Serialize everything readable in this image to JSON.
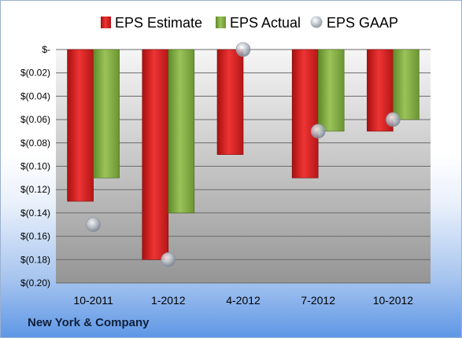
{
  "footer": {
    "company": "New York & Company"
  },
  "colors": {
    "estimate": "#d42020",
    "actual": "#7ea83e",
    "gaap": "#a6adb8",
    "plot_bg_top": "#f4f4f4",
    "plot_bg_bottom": "#9a9a9a"
  },
  "chart_data": {
    "type": "bar",
    "categories": [
      "10-2011",
      "1-2012",
      "4-2012",
      "7-2012",
      "10-2012"
    ],
    "series": [
      {
        "name": "EPS Estimate",
        "kind": "bar",
        "values": [
          -0.13,
          -0.18,
          -0.09,
          -0.11,
          -0.07
        ]
      },
      {
        "name": "EPS Actual",
        "kind": "bar",
        "values": [
          -0.11,
          -0.14,
          null,
          -0.07,
          -0.06
        ]
      },
      {
        "name": "EPS GAAP",
        "kind": "scatter",
        "values": [
          -0.15,
          -0.18,
          0.0,
          -0.07,
          -0.06
        ]
      }
    ],
    "ylim": [
      -0.2,
      0.0
    ],
    "yticks": [
      0.0,
      -0.02,
      -0.04,
      -0.06,
      -0.08,
      -0.1,
      -0.12,
      -0.14,
      -0.16,
      -0.18,
      -0.2
    ],
    "ytick_labels": [
      "$-",
      "$(0.02)",
      "$(0.04)",
      "$(0.06)",
      "$(0.08)",
      "$(0.10)",
      "$(0.12)",
      "$(0.14)",
      "$(0.16)",
      "$(0.18)",
      "$(0.20)"
    ],
    "legend_position": "top",
    "grid": true
  }
}
